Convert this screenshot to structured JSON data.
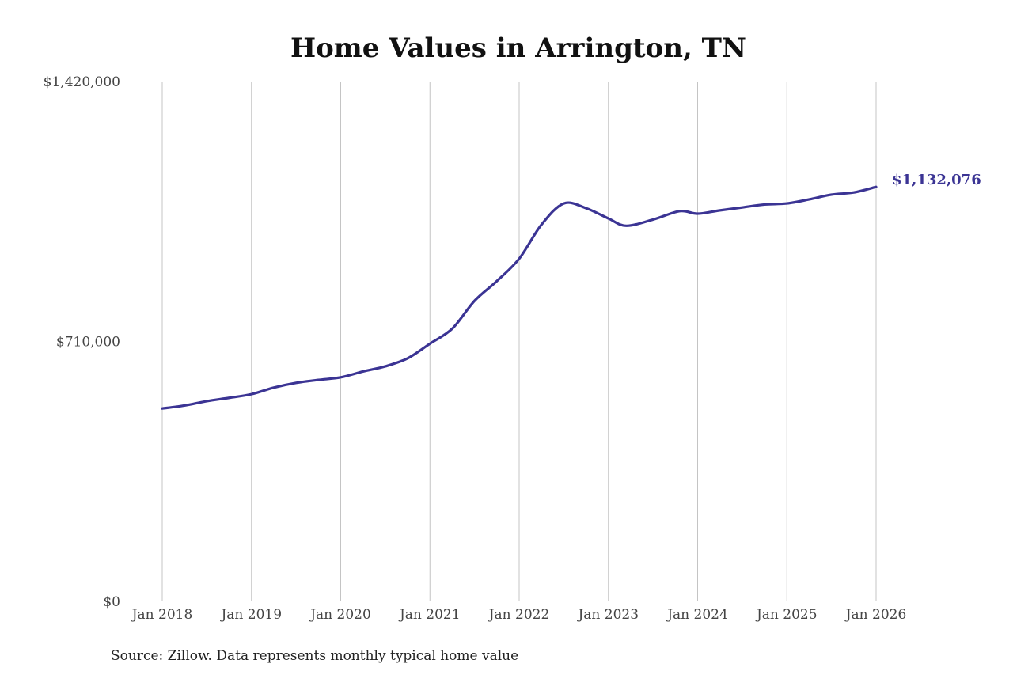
{
  "chart_data": {
    "type": "line",
    "title": "Home Values in Arrington, TN",
    "source": "Source: Zillow. Data represents monthly typical home value",
    "xlabel": "",
    "ylabel": "",
    "ylim": [
      0,
      1420000
    ],
    "xlim": [
      2018,
      2026
    ],
    "y_ticks": [
      {
        "value": 0,
        "label": "$0"
      },
      {
        "value": 710000,
        "label": "$710,000"
      },
      {
        "value": 1420000,
        "label": "$1,420,000"
      }
    ],
    "x_ticks": [
      {
        "value": 2018,
        "label": "Jan 2018"
      },
      {
        "value": 2019,
        "label": "Jan 2019"
      },
      {
        "value": 2020,
        "label": "Jan 2020"
      },
      {
        "value": 2021,
        "label": "Jan 2021"
      },
      {
        "value": 2022,
        "label": "Jan 2022"
      },
      {
        "value": 2023,
        "label": "Jan 2023"
      },
      {
        "value": 2024,
        "label": "Jan 2024"
      },
      {
        "value": 2025,
        "label": "Jan 2025"
      },
      {
        "value": 2026,
        "label": "Jan 2026"
      }
    ],
    "grid": "vertical",
    "series": [
      {
        "name": "Typical home value",
        "color": "#3b3494",
        "end_label": "$1,132,076",
        "x": [
          2018.0,
          2018.25,
          2018.5,
          2018.75,
          2019.0,
          2019.25,
          2019.5,
          2019.75,
          2020.0,
          2020.25,
          2020.5,
          2020.75,
          2021.0,
          2021.25,
          2021.5,
          2021.75,
          2022.0,
          2022.25,
          2022.5,
          2022.75,
          2023.0,
          2023.2,
          2023.5,
          2023.8,
          2024.0,
          2024.25,
          2024.5,
          2024.75,
          2025.0,
          2025.25,
          2025.5,
          2025.75,
          2026.0
        ],
        "values": [
          527000,
          535000,
          547000,
          556000,
          566000,
          584000,
          597000,
          605000,
          612000,
          628000,
          642000,
          664000,
          704000,
          745000,
          821000,
          875000,
          936000,
          1029000,
          1087000,
          1074000,
          1046000,
          1026000,
          1043000,
          1066000,
          1059000,
          1068000,
          1076000,
          1084000,
          1087000,
          1098000,
          1111000,
          1117000,
          1132076
        ]
      }
    ]
  }
}
